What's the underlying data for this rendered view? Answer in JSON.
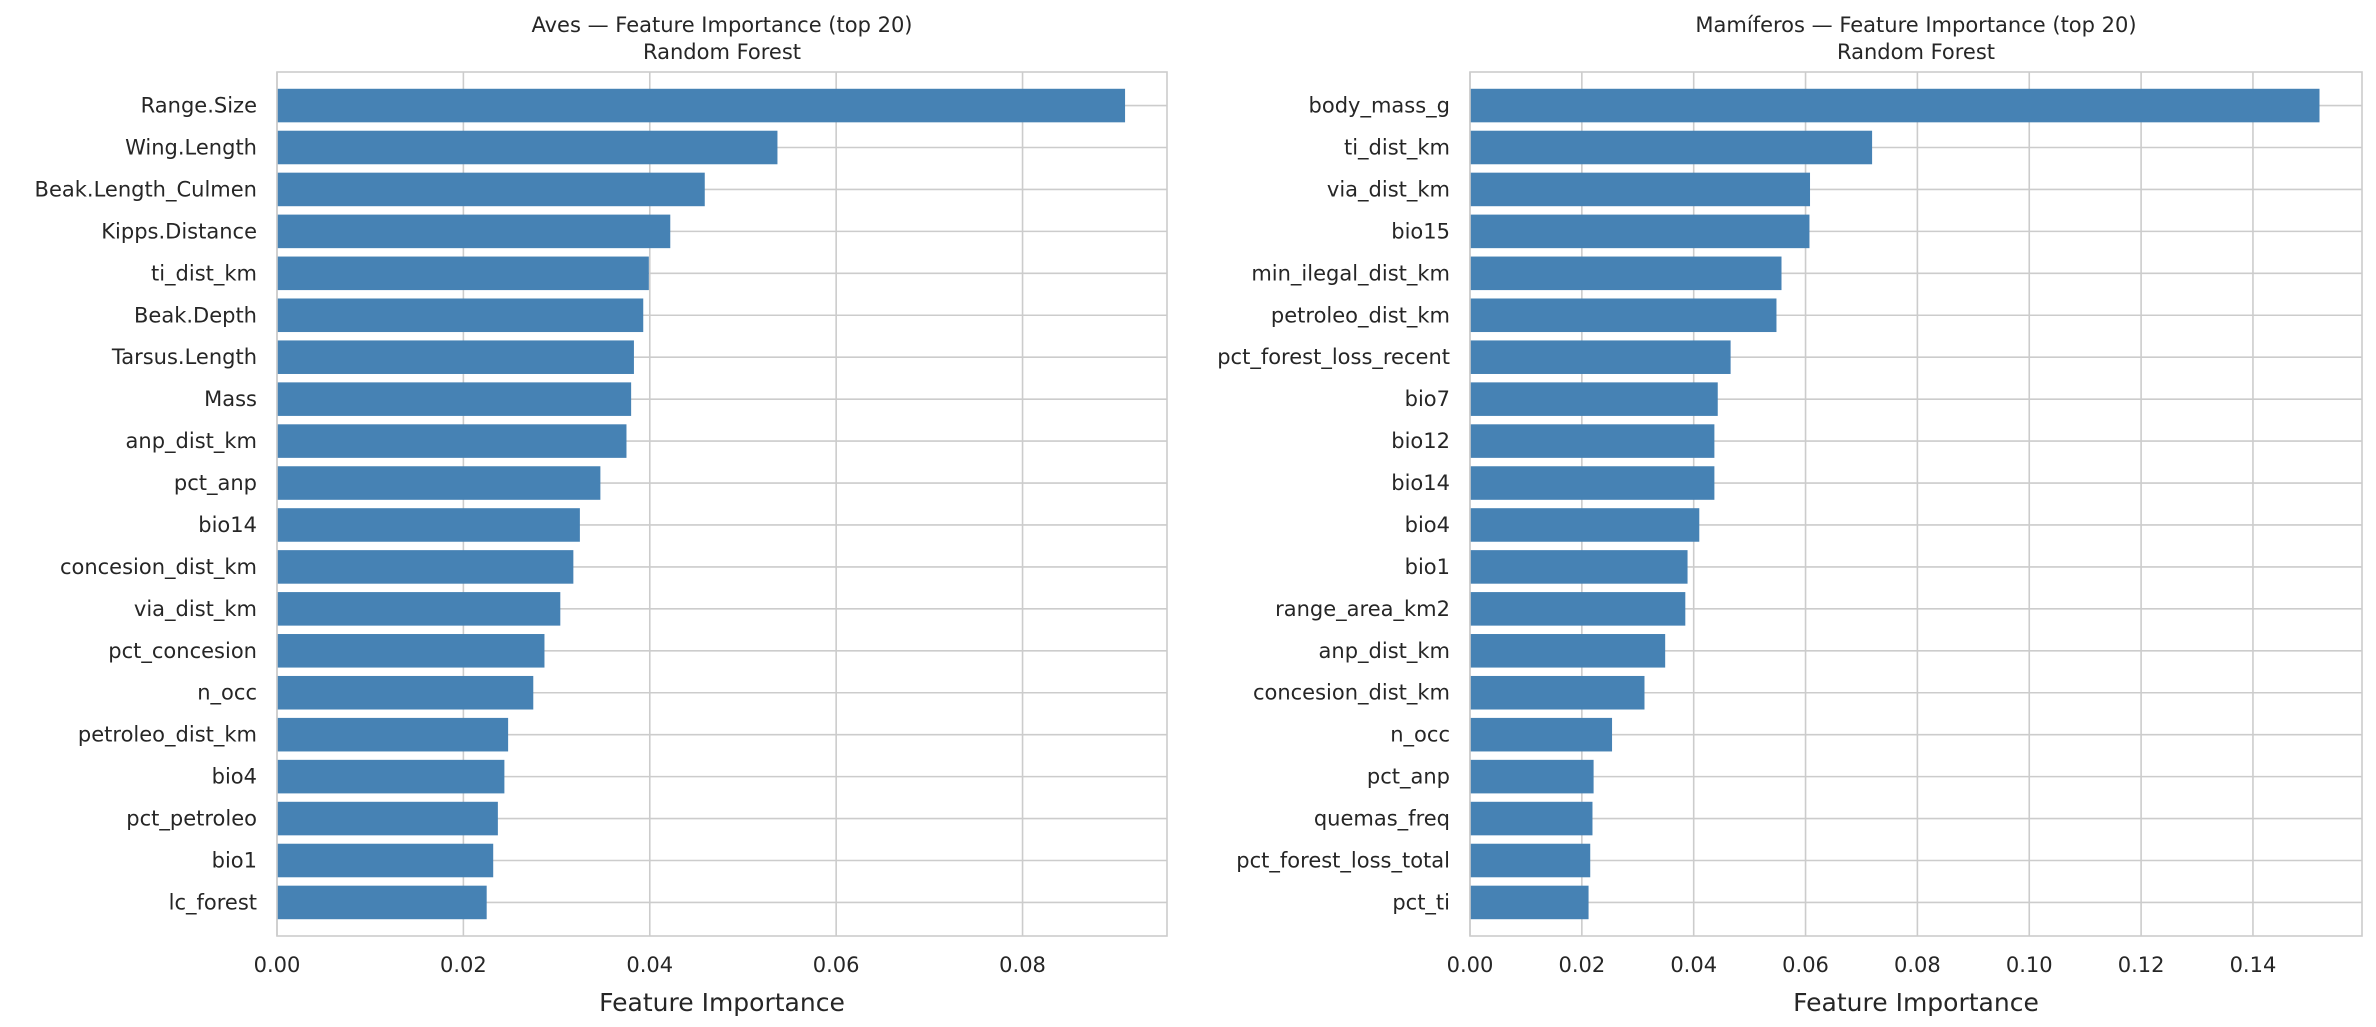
{
  "chart_data": [
    {
      "type": "bar",
      "orientation": "horizontal",
      "title": "Aves — Feature Importance (top 20)",
      "subtitle": "Random Forest",
      "xlabel": "Feature Importance",
      "ylabel": "",
      "xlim": [
        0,
        0.0955
      ],
      "xticks": [
        0.0,
        0.02,
        0.04,
        0.06,
        0.08
      ],
      "xtick_labels": [
        "0.00",
        "0.02",
        "0.04",
        "0.06",
        "0.08"
      ],
      "grid": true,
      "bar_color": "#4682b4",
      "categories": [
        "Range.Size",
        "Wing.Length",
        "Beak.Length_Culmen",
        "Kipps.Distance",
        "ti_dist_km",
        "Beak.Depth",
        "Tarsus.Length",
        "Mass",
        "anp_dist_km",
        "pct_anp",
        "bio14",
        "concesion_dist_km",
        "via_dist_km",
        "pct_concesion",
        "n_occ",
        "petroleo_dist_km",
        "bio4",
        "pct_petroleo",
        "bio1",
        "lc_forest"
      ],
      "values": [
        0.091,
        0.0537,
        0.0459,
        0.0422,
        0.0399,
        0.0393,
        0.0383,
        0.038,
        0.0375,
        0.0347,
        0.0325,
        0.0318,
        0.0304,
        0.0287,
        0.0275,
        0.0248,
        0.0244,
        0.0237,
        0.0232,
        0.0225
      ]
    },
    {
      "type": "bar",
      "orientation": "horizontal",
      "title": "Mamíferos — Feature Importance (top 20)",
      "subtitle": "Random Forest",
      "xlabel": "Feature Importance",
      "ylabel": "",
      "xlim": [
        0,
        0.1595
      ],
      "xticks": [
        0.0,
        0.02,
        0.04,
        0.06,
        0.08,
        0.1,
        0.12,
        0.14
      ],
      "xtick_labels": [
        "0.00",
        "0.02",
        "0.04",
        "0.06",
        "0.08",
        "0.10",
        "0.12",
        "0.14"
      ],
      "grid": true,
      "bar_color": "#4682b4",
      "categories": [
        "body_mass_g",
        "ti_dist_km",
        "via_dist_km",
        "bio15",
        "min_ilegal_dist_km",
        "petroleo_dist_km",
        "pct_forest_loss_recent",
        "bio7",
        "bio12",
        "bio14",
        "bio4",
        "bio1",
        "range_area_km2",
        "anp_dist_km",
        "concesion_dist_km",
        "n_occ",
        "pct_anp",
        "quemas_freq",
        "pct_forest_loss_total",
        "pct_ti"
      ],
      "values": [
        0.1519,
        0.0719,
        0.0608,
        0.0607,
        0.0557,
        0.0548,
        0.0466,
        0.0443,
        0.0437,
        0.0437,
        0.041,
        0.0389,
        0.0385,
        0.0349,
        0.0312,
        0.0254,
        0.0221,
        0.0219,
        0.0215,
        0.0212
      ]
    }
  ]
}
